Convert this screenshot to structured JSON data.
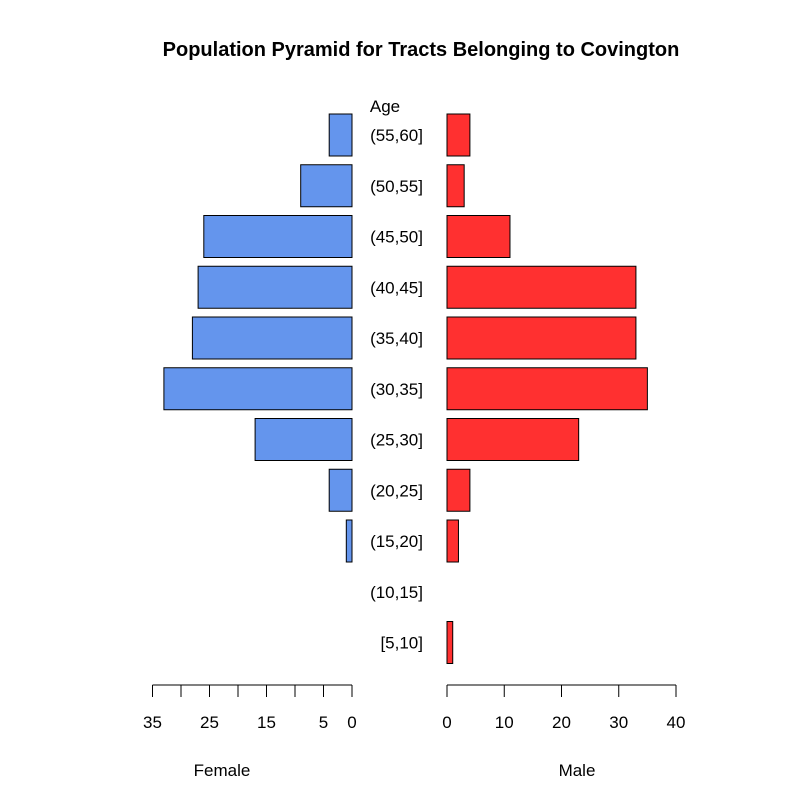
{
  "chart_data": {
    "type": "bar",
    "title": "Population Pyramid for Tracts Belonging to Covington",
    "category_header": "Age",
    "categories": [
      "[5,10]",
      "(10,15]",
      "(15,20]",
      "(20,25]",
      "(25,30]",
      "(30,35]",
      "(35,40]",
      "(40,45]",
      "(45,50]",
      "(50,55]",
      "(55,60]"
    ],
    "series": [
      {
        "name": "Female",
        "color": "#6495ED",
        "values": [
          0,
          0,
          1,
          4,
          17,
          33,
          28,
          27,
          26,
          9,
          4
        ]
      },
      {
        "name": "Male",
        "color": "#FF3030",
        "values": [
          1,
          0,
          2,
          4,
          23,
          35,
          33,
          33,
          11,
          3,
          4
        ]
      }
    ],
    "female_axis": {
      "label": "Female",
      "range": [
        0,
        35
      ],
      "ticks": [
        0,
        5,
        10,
        15,
        20,
        25,
        30,
        35
      ],
      "tick_labels": [
        "35",
        "25",
        "15",
        "5",
        "0"
      ],
      "tick_label_values": [
        35,
        25,
        15,
        5,
        0
      ]
    },
    "male_axis": {
      "label": "Male",
      "range": [
        0,
        40
      ],
      "ticks": [
        0,
        10,
        20,
        30,
        40
      ],
      "tick_labels": [
        "0",
        "10",
        "20",
        "30",
        "40"
      ]
    },
    "grid": false
  }
}
